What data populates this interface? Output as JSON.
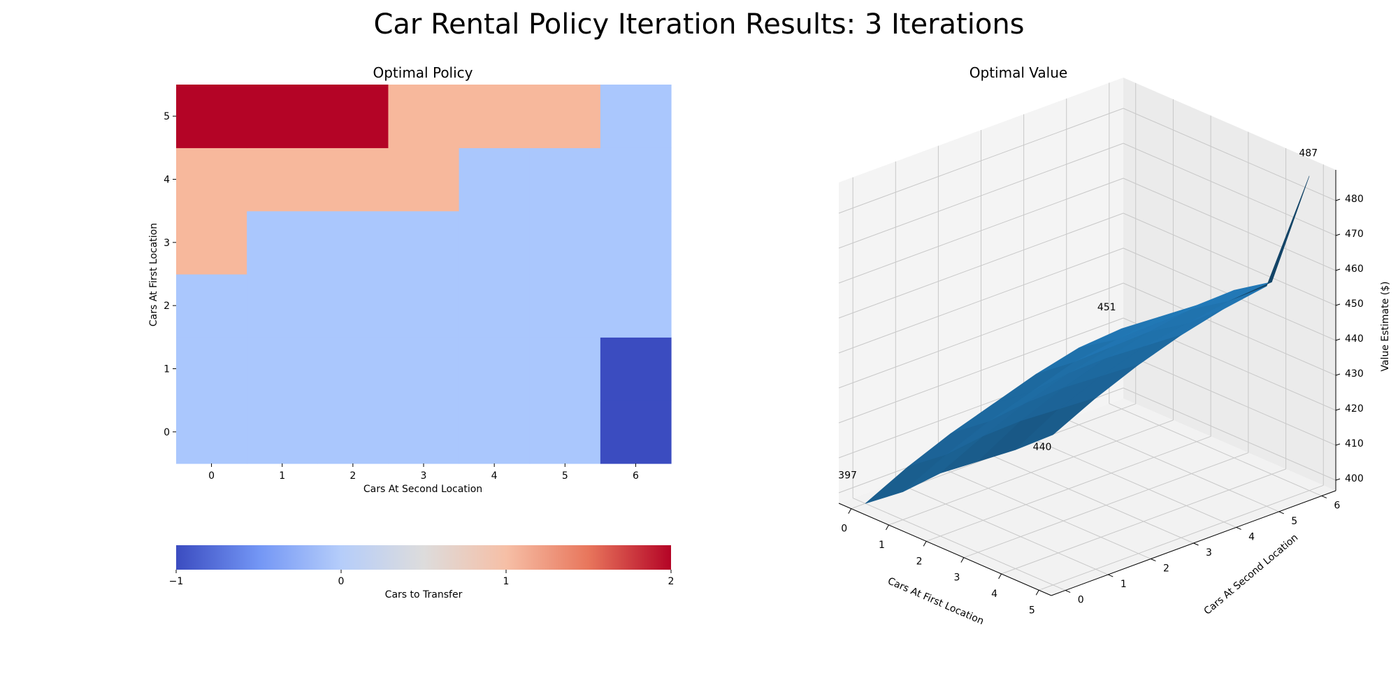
{
  "title": "Car Rental Policy Iteration Results: 3 Iterations",
  "chart_data": [
    {
      "type": "heatmap",
      "title": "Optimal Policy",
      "xlabel": "Cars At Second Location",
      "ylabel": "Cars At First Location",
      "x_categories": [
        "0",
        "1",
        "2",
        "3",
        "4",
        "5",
        "6"
      ],
      "y_categories": [
        "0",
        "1",
        "2",
        "3",
        "4",
        "5"
      ],
      "values": [
        [
          0,
          0,
          0,
          0,
          0,
          0,
          -1
        ],
        [
          0,
          0,
          0,
          0,
          0,
          0,
          -1
        ],
        [
          0,
          0,
          0,
          0,
          0,
          0,
          0
        ],
        [
          1,
          0,
          0,
          0,
          0,
          0,
          0
        ],
        [
          1,
          1,
          1,
          1,
          0,
          0,
          0
        ],
        [
          2,
          2,
          2,
          1,
          1,
          1,
          0
        ]
      ],
      "colorbar": {
        "label": "Cars to Transfer",
        "range": [
          -1,
          2
        ],
        "ticks": [
          "−1",
          "0",
          "1",
          "2"
        ],
        "colormap": "coolwarm"
      },
      "colors": {
        "-1": "#3b4cc0",
        "0": "#aac7fd",
        "1": "#f7b89c",
        "2": "#b40426"
      }
    },
    {
      "type": "surface",
      "title": "Optimal Value",
      "xlabel": "Cars At First Location",
      "ylabel": "Cars At Second Location",
      "zlabel": "Value Estimate ($)",
      "x_ticks": [
        "0",
        "1",
        "2",
        "3",
        "4",
        "5"
      ],
      "y_ticks": [
        "0",
        "1",
        "2",
        "3",
        "4",
        "5",
        "6"
      ],
      "z_ticks": [
        "400",
        "410",
        "420",
        "430",
        "440",
        "450",
        "460",
        "470",
        "480"
      ],
      "zlim": [
        400,
        487
      ],
      "values": [
        [
          397,
          403,
          408,
          412,
          416,
          419,
          420
        ],
        [
          405,
          411,
          416,
          420,
          424,
          426,
          428
        ],
        [
          415,
          421,
          426,
          430,
          433,
          435,
          436
        ],
        [
          423,
          430,
          435,
          439,
          442,
          444,
          445
        ],
        [
          431,
          438,
          443,
          447,
          449,
          451,
          452
        ],
        [
          440,
          446,
          451,
          455,
          458,
          460,
          487
        ]
      ],
      "annotations": [
        {
          "text": "397"
        },
        {
          "text": "440"
        },
        {
          "text": "451"
        },
        {
          "text": "487"
        }
      ],
      "surface_color": "#1f6fa8"
    }
  ]
}
